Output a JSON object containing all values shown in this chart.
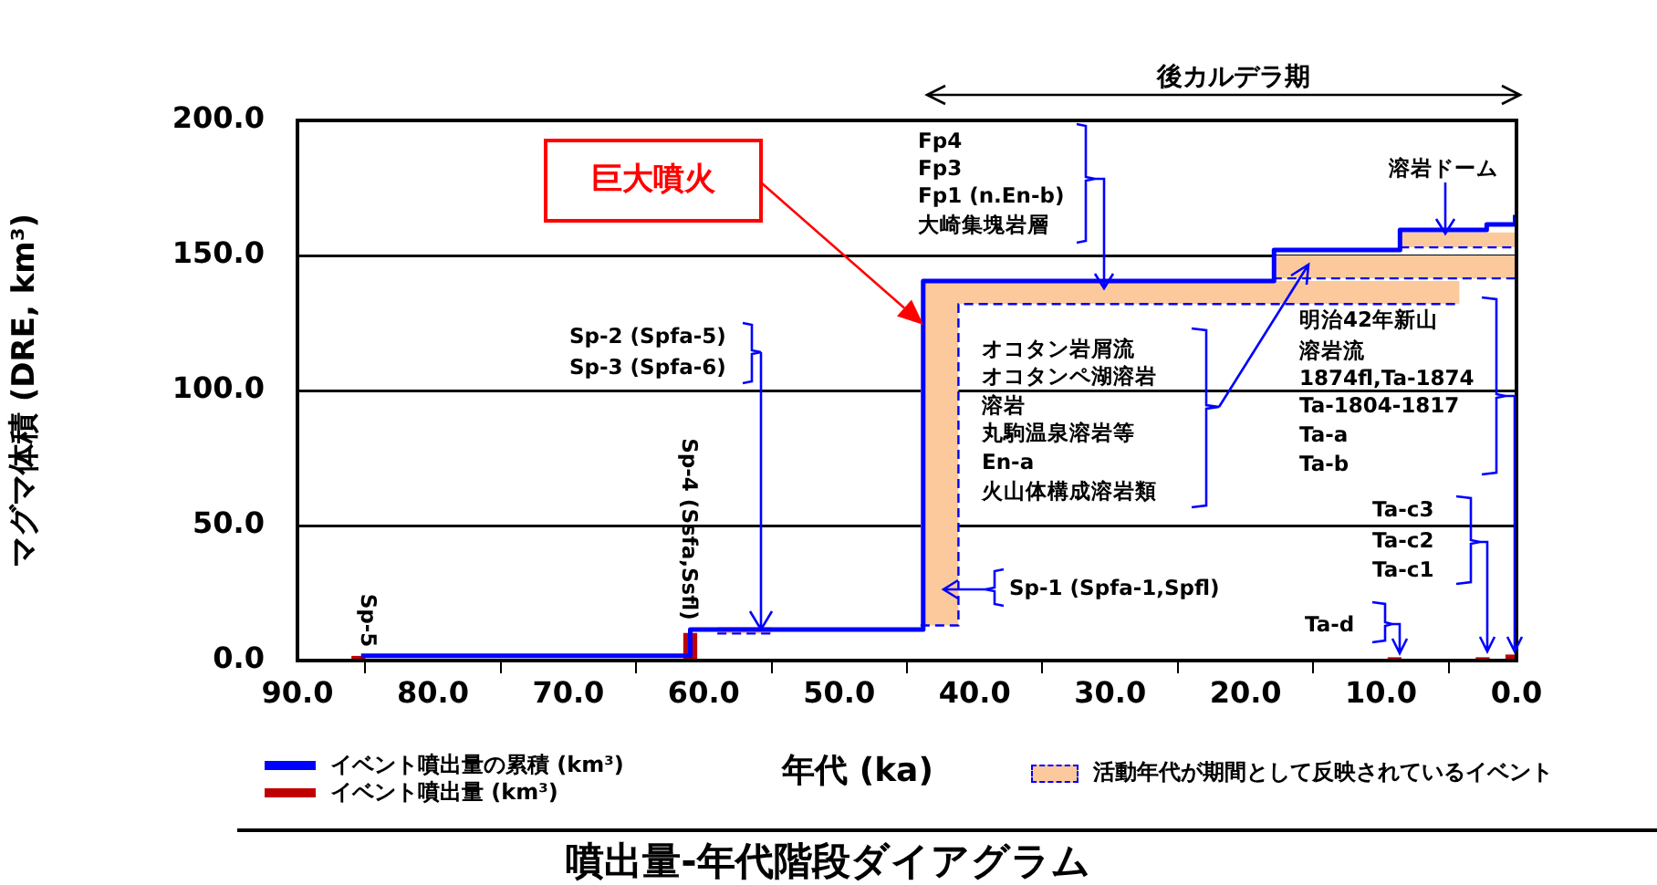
{
  "chart_data": {
    "type": "step",
    "title": "噴出量-年代階段ダイアグラム",
    "xlabel": "年代 (ka)",
    "ylabel": "マグマ体積 (DRE, km³)",
    "xlim": [
      90,
      0
    ],
    "xticks": [
      {
        "value": 90,
        "label": "90.0"
      },
      {
        "value": 80,
        "label": "80.0"
      },
      {
        "value": 70,
        "label": "70.0"
      },
      {
        "value": 60,
        "label": "60.0"
      },
      {
        "value": 50,
        "label": "50.0"
      },
      {
        "value": 40,
        "label": "40.0"
      },
      {
        "value": 30,
        "label": "30.0"
      },
      {
        "value": 20,
        "label": "20.0"
      },
      {
        "value": 10,
        "label": "10.0"
      },
      {
        "value": 0,
        "label": "0.0"
      }
    ],
    "ylim": [
      0,
      200
    ],
    "yticks": [
      {
        "value": 0,
        "label": "0.0"
      },
      {
        "value": 50,
        "label": "50.0"
      },
      {
        "value": 100,
        "label": "100.0"
      },
      {
        "value": 150,
        "label": "150.0"
      },
      {
        "value": 200,
        "label": "200.0"
      }
    ],
    "grid": "y",
    "legend": "bottom",
    "series": [
      {
        "type": "line",
        "name": "活動年代が期間として反映されているイベント",
        "color": "#0000ff",
        "line_style": "dashed",
        "x": [
          44,
          41.2,
          41.2,
          4.2
        ],
        "values": [
          13,
          13,
          132,
          132
        ],
        "lower": [
          13,
          13,
          132,
          132
        ],
        "upper": [
          140.5,
          140.5,
          140.5,
          140.5
        ]
      },
      {
        "type": "line",
        "color": "#0000ff",
        "line_style": "dashed",
        "x": [
          18,
          0.1
        ],
        "values": [
          141.5,
          141.5
        ],
        "lower": [
          141.5,
          141.5
        ],
        "upper": [
          150,
          150
        ]
      },
      {
        "type": "line",
        "color": "#0000ff",
        "line_style": "dashed",
        "x": [
          8.6,
          0.1
        ],
        "values": [
          153,
          153
        ],
        "lower": [
          153,
          153
        ],
        "upper": [
          158.5,
          158.5
        ]
      },
      {
        "type": "line",
        "color": "#0000ff",
        "line_style": "dashed",
        "x": [
          59,
          55
        ],
        "values": [
          10,
          10
        ],
        "lower": [
          10,
          10
        ],
        "upper": [
          12.5,
          12.5
        ]
      },
      {
        "type": "bar",
        "name": "イベント噴出量 (km³)",
        "color": "#c00000",
        "x": [
          85.5,
          61,
          9,
          2.5,
          0.3
        ],
        "values": [
          1.5,
          10,
          1,
          1,
          2
        ]
      },
      {
        "name": "イベント噴出量の累積 (km³)",
        "color": "#0000ff",
        "x": [
          85.3,
          61,
          43.8,
          17.9,
          8.6,
          2.2,
          0.1
        ],
        "values": [
          1.8,
          11.5,
          140.5,
          152,
          159.5,
          161.5,
          165
        ]
      }
    ],
    "annotations": [
      "Sp-5",
      "Sp-4 (Ssfa,Ssfl)",
      "Sp-2 (Spfa-5)",
      "Sp-3 (Spfa-6)",
      "巨大噴火",
      "Fp4",
      "Fp3",
      "Fp1 (n.En-b)",
      "大崎集塊岩層",
      "オコタン岩屑流",
      "オコタンペ湖溶岩",
      "溶岩",
      "丸駒温泉溶岩等",
      "En-a",
      "火山体構成溶岩類",
      "Sp-1 (Spfa-1,Spfl)",
      "明治42年新山",
      "溶岩流",
      "1874fl,Ta-1874",
      "Ta-1804-1817",
      "Ta-a",
      "Ta-b",
      "溶岩ドーム",
      "Ta-c3",
      "Ta-c2",
      "Ta-c1",
      "Ta-d",
      "後カルデラ期"
    ]
  }
}
